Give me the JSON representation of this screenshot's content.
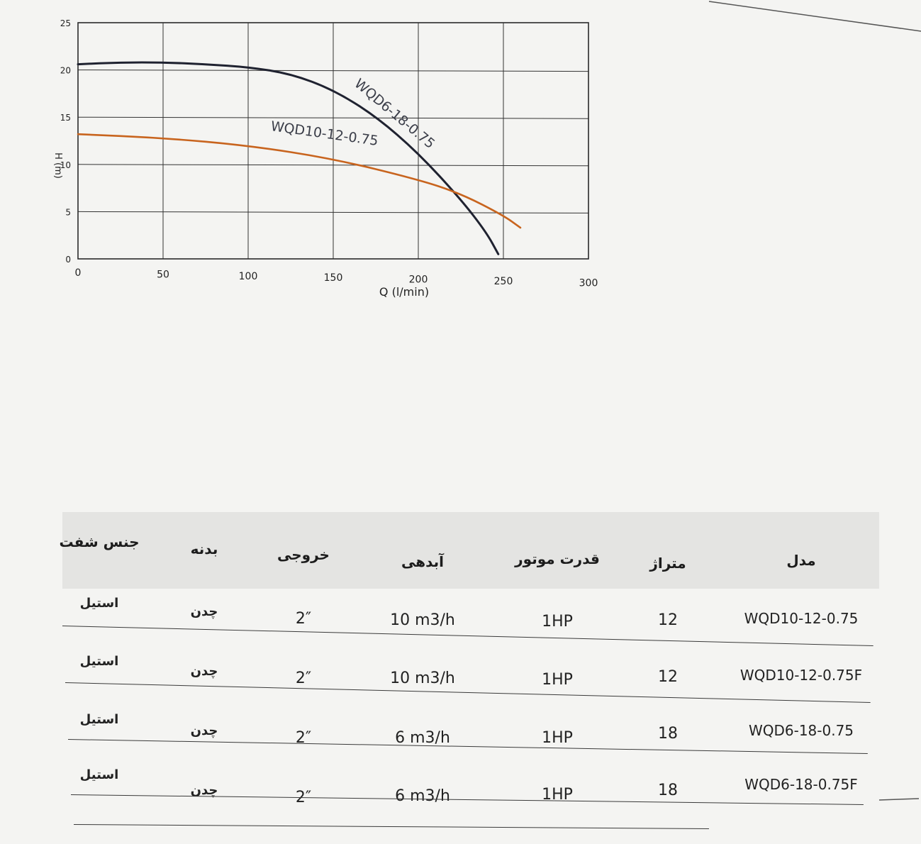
{
  "chart_data": {
    "type": "line",
    "title": "",
    "xlabel": "Q (l/min)",
    "ylabel": "H (m)",
    "xlim": [
      0,
      300
    ],
    "ylim": [
      0,
      25
    ],
    "xticks": [
      0,
      50,
      100,
      150,
      200,
      250,
      300
    ],
    "yticks": [
      0,
      5,
      10,
      15,
      20,
      25
    ],
    "grid": true,
    "series": [
      {
        "name": "WQD6-18-0.75",
        "color": "#1f2230",
        "x": [
          0,
          25,
          50,
          75,
          100,
          125,
          150,
          175,
          200,
          225,
          240,
          247
        ],
        "y": [
          20.6,
          20.8,
          20.8,
          20.6,
          20.3,
          19.6,
          17.9,
          15.1,
          11.2,
          6.3,
          2.8,
          0.5
        ]
      },
      {
        "name": "WQD10-12-0.75",
        "color": "#c8641e",
        "x": [
          0,
          50,
          100,
          150,
          200,
          225,
          250,
          260
        ],
        "y": [
          13.2,
          12.8,
          12.0,
          10.6,
          8.4,
          6.9,
          4.6,
          3.3
        ]
      }
    ]
  },
  "table": {
    "headers": [
      "مدل",
      "متراژ",
      "قدرت موتور",
      "آبدهی",
      "خروجی",
      "بدنه",
      "جنس شفت"
    ],
    "rows": [
      [
        "WQD10-12-0.75",
        "12",
        "1HP",
        "10 m3/h",
        "2″",
        "چدن",
        "استیل"
      ],
      [
        "WQD10-12-0.75F",
        "12",
        "1HP",
        "10 m3/h",
        "2″",
        "چدن",
        "استیل"
      ],
      [
        "WQD6-18-0.75",
        "18",
        "1HP",
        "6 m3/h",
        "2″",
        "چدن",
        "استیل"
      ],
      [
        "WQD6-18-0.75F",
        "18",
        "1HP",
        "6 m3/h",
        "2″",
        "چدن",
        "استیل"
      ]
    ]
  }
}
